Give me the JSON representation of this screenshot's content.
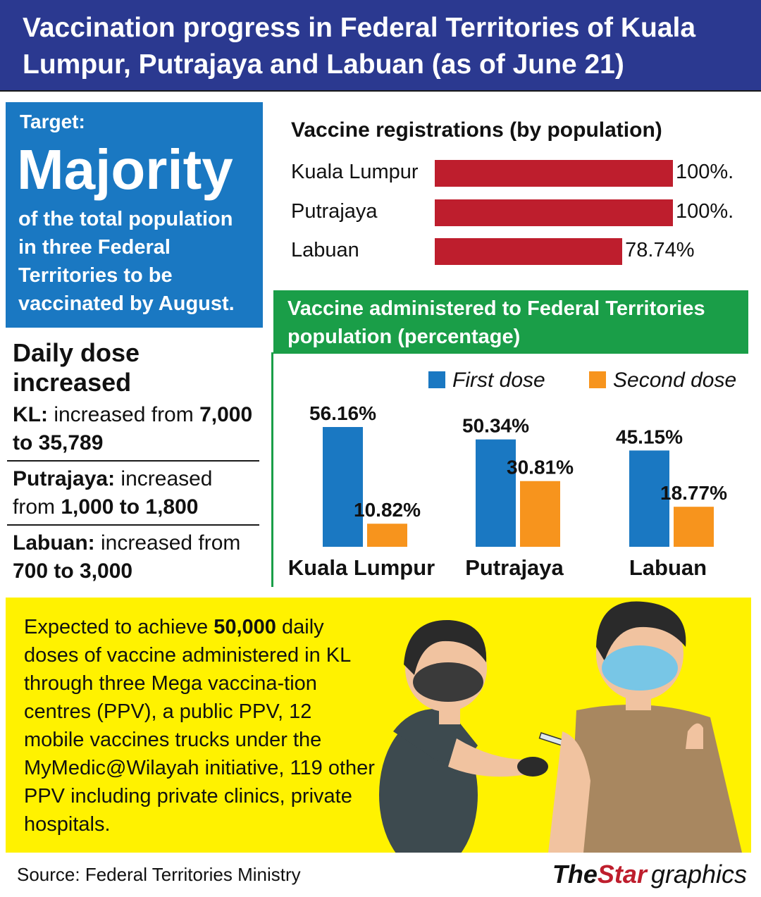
{
  "header": {
    "title": "Vaccination progress in Federal Territories of Kuala Lumpur, Putrajaya and Labuan (as of June 21)"
  },
  "target": {
    "label": "Target:",
    "big": "Majority",
    "text": "of the total population in three Federal Territories to be vaccinated by August."
  },
  "daily": {
    "title": "Daily dose increased",
    "items": [
      {
        "bold": "KL:",
        "text": " increased  from ",
        "bold2": "7,000 to 35,789",
        "after": ""
      },
      {
        "bold": "Putrajaya:",
        "text": " increased from ",
        "bold2": "1,000 to 1,800",
        "after": ""
      },
      {
        "bold": "Labuan:",
        "text": " increased from ",
        "bold2": "700 to 3,000",
        "after": ""
      }
    ]
  },
  "chart_data": [
    {
      "type": "bar",
      "title": "Vaccine registrations (by population)",
      "categories": [
        "Kuala Lumpur",
        "Putrajaya",
        "Labuan"
      ],
      "values": [
        100,
        100,
        78.74
      ],
      "value_labels": [
        "100%.",
        "100%.",
        "78.74%"
      ],
      "xlim": [
        0,
        100
      ],
      "color": "#be1e2d"
    },
    {
      "type": "bar",
      "title": "Vaccine administered to Federal Territories population (percentage)",
      "categories": [
        "Kuala Lumpur",
        "Putrajaya",
        "Labuan"
      ],
      "series": [
        {
          "name": "First dose",
          "values": [
            56.16,
            50.34,
            45.15
          ],
          "labels": [
            "56.16%",
            "50.34%",
            "45.15%"
          ],
          "color": "#1a78c2"
        },
        {
          "name": "Second dose",
          "values": [
            10.82,
            30.81,
            18.77
          ],
          "labels": [
            "10.82%",
            "30.81%",
            "18.77%"
          ],
          "color": "#f7941d"
        }
      ],
      "legend": "top-right"
    }
  ],
  "promo": {
    "t1": "Expected to achieve ",
    "bold": "50,000",
    "t2": " daily doses of vaccine administered in KL through three Mega vaccina-tion centres (PPV), a public PPV, 12 mobile vaccines trucks under the MyMedic@Wilayah initiative, 119 other PPV including private clinics, private hospitals."
  },
  "footer": {
    "source": "Source: Federal Territories Ministry",
    "logo_the": "The",
    "logo_star": "Star",
    "logo_graphics": "graphics"
  },
  "colors": {
    "header": "#2b3990",
    "target": "#1a78c2",
    "green": "#1a9e48",
    "red": "#be1e2d",
    "blue": "#1a78c2",
    "orange": "#f7941d",
    "yellow": "#fff200"
  }
}
